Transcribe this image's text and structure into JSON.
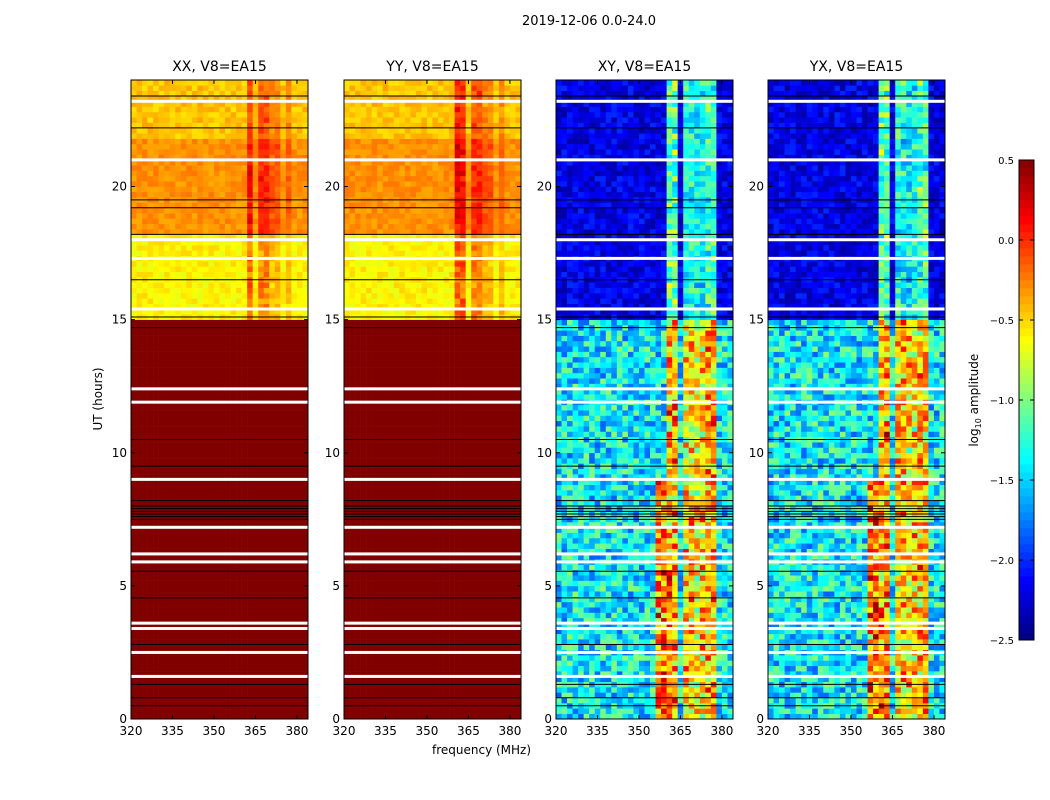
{
  "chart_data": {
    "type": "heatmap",
    "title": "2019-12-06 0.0-24.0",
    "xlabel": "frequency (MHz)",
    "ylabel": "UT (hours)",
    "xlim": [
      320,
      384
    ],
    "ylim": [
      0,
      24
    ],
    "xticks": [
      320,
      335,
      350,
      365,
      380
    ],
    "yticks": [
      0,
      5,
      10,
      15,
      20
    ],
    "colorbar": {
      "label": "log10 amplitude",
      "label_main": "log",
      "label_sub": "10",
      "label_rest": " amplitude",
      "range": [
        -2.5,
        0.5
      ],
      "ticks": [
        "0.5",
        "0.0",
        "−0.5",
        "−1.0",
        "−1.5",
        "−2.0",
        "−2.5"
      ],
      "tick_values": [
        0.5,
        0.0,
        -0.5,
        -1.0,
        -1.5,
        -2.0,
        -2.5
      ],
      "colormap": "jet"
    },
    "flagged_rows_hours": [
      23.2,
      21.0,
      18.0,
      17.3,
      15.4,
      12.4,
      11.9,
      9.0,
      7.2,
      6.2,
      5.9,
      3.6,
      3.4,
      2.5,
      1.6
    ],
    "black_line_hours": [
      23.4,
      22.2,
      19.5,
      19.2,
      18.2,
      16.5,
      15.1,
      14.7,
      10.5,
      9.5,
      8.2,
      8.0,
      7.9,
      7.8,
      7.7,
      7.6,
      7.5,
      5.55,
      4.55,
      2.8,
      1.3,
      0.8,
      0.5
    ],
    "panels": [
      {
        "title": "XX, V8=EA15",
        "regimes": [
          {
            "t0": 0,
            "t1": 15,
            "base": 0.5,
            "noise": 0
          },
          {
            "t0": 15,
            "t1": 18.2,
            "base": -0.6,
            "noise": 0.1
          },
          {
            "t0": 18.2,
            "t1": 21.9,
            "base": -0.3,
            "noise": 0.08
          },
          {
            "t0": 21.9,
            "t1": 24,
            "base": -0.45,
            "noise": 0.1
          }
        ],
        "rfi_bands": [
          {
            "f0": 362,
            "f1": 365,
            "t0": 15,
            "t1": 24,
            "boost": 0.45
          },
          {
            "f0": 366,
            "f1": 370,
            "t0": 15,
            "t1": 24,
            "boost": 0.35
          },
          {
            "f0": 371,
            "f1": 375,
            "t0": 15,
            "t1": 24,
            "boost": 0.2
          },
          {
            "f0": 376,
            "f1": 379,
            "t0": 15,
            "t1": 24,
            "boost": 0.15
          }
        ]
      },
      {
        "title": "YY, V8=EA15",
        "regimes": [
          {
            "t0": 0,
            "t1": 15,
            "base": 0.5,
            "noise": 0
          },
          {
            "t0": 15,
            "t1": 18.2,
            "base": -0.6,
            "noise": 0.1
          },
          {
            "t0": 18.2,
            "t1": 21.9,
            "base": -0.3,
            "noise": 0.08
          },
          {
            "t0": 21.9,
            "t1": 24,
            "base": -0.45,
            "noise": 0.1
          }
        ],
        "rfi_bands": [
          {
            "f0": 361,
            "f1": 365,
            "t0": 15,
            "t1": 24,
            "boost": 0.5
          },
          {
            "f0": 366,
            "f1": 370,
            "t0": 15,
            "t1": 24,
            "boost": 0.35
          },
          {
            "f0": 371,
            "f1": 375,
            "t0": 15,
            "t1": 24,
            "boost": 0.2
          },
          {
            "f0": 376,
            "f1": 379,
            "t0": 15,
            "t1": 24,
            "boost": 0.15
          }
        ]
      },
      {
        "title": "XY, V8=EA15",
        "regimes": [
          {
            "t0": 0,
            "t1": 15,
            "base": -1.4,
            "noise": 0.45
          },
          {
            "t0": 15,
            "t1": 24,
            "base": -2.2,
            "noise": 0.2
          }
        ],
        "rfi_bands": [
          {
            "f0": 361,
            "f1": 365,
            "t0": 0,
            "t1": 24,
            "boost": 1.2
          },
          {
            "f0": 366,
            "f1": 370,
            "t0": 0,
            "t1": 24,
            "boost": 1.0
          },
          {
            "f0": 371,
            "f1": 374,
            "t0": 0,
            "t1": 24,
            "boost": 0.9
          },
          {
            "f0": 375,
            "f1": 379,
            "t0": 0,
            "t1": 24,
            "boost": 1.1
          },
          {
            "f0": 357,
            "f1": 361,
            "t0": 0,
            "t1": 9,
            "boost": 1.3
          }
        ]
      },
      {
        "title": "YX, V8=EA15",
        "regimes": [
          {
            "t0": 0,
            "t1": 15,
            "base": -1.4,
            "noise": 0.45
          },
          {
            "t0": 15,
            "t1": 24,
            "base": -2.2,
            "noise": 0.2
          }
        ],
        "rfi_bands": [
          {
            "f0": 361,
            "f1": 365,
            "t0": 0,
            "t1": 24,
            "boost": 1.2
          },
          {
            "f0": 366,
            "f1": 370,
            "t0": 0,
            "t1": 24,
            "boost": 1.0
          },
          {
            "f0": 371,
            "f1": 374,
            "t0": 0,
            "t1": 24,
            "boost": 0.9
          },
          {
            "f0": 375,
            "f1": 379,
            "t0": 0,
            "t1": 24,
            "boost": 1.1
          },
          {
            "f0": 357,
            "f1": 361,
            "t0": 0,
            "t1": 9,
            "boost": 1.3
          }
        ]
      }
    ]
  }
}
